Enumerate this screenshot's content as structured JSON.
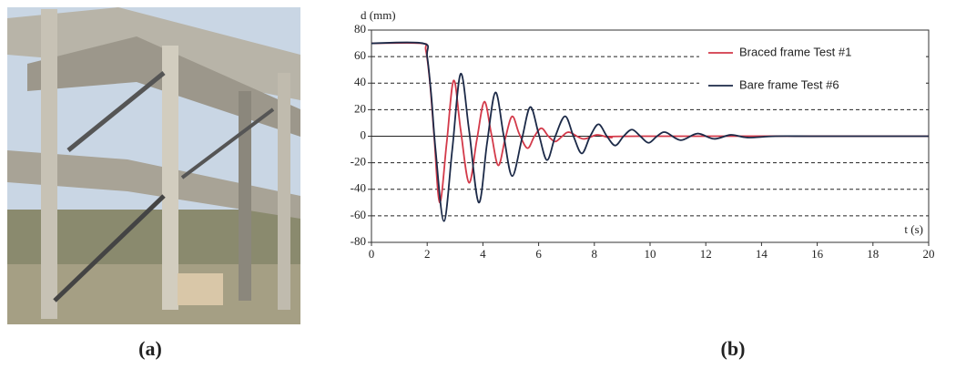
{
  "captions": [
    "(a)",
    "(b)"
  ],
  "chart_data": {
    "type": "line",
    "y_label": "d (mm)",
    "x_label": "t (s)",
    "xlim": [
      0,
      20
    ],
    "xticks": [
      0,
      2,
      4,
      6,
      8,
      10,
      12,
      14,
      16,
      18,
      20
    ],
    "ylim": [
      -80,
      80
    ],
    "yticks": [
      -80,
      -60,
      -40,
      -20,
      0,
      20,
      40,
      60,
      80
    ],
    "grid": true,
    "legend": "upper right",
    "series": [
      {
        "name": "Braced frame Test #1",
        "color": "#d33a4a",
        "x": [
          0,
          1.8,
          1.95,
          2.1,
          2.25,
          2.45,
          2.7,
          2.95,
          3.2,
          3.5,
          3.78,
          4.05,
          4.3,
          4.55,
          4.8,
          5.05,
          5.3,
          5.6,
          5.85,
          6.1,
          6.35,
          6.6,
          6.85,
          7.1,
          7.6,
          8.1,
          8.6,
          9.5,
          20
        ],
        "values": [
          70,
          70,
          65,
          40,
          0,
          -50,
          -5,
          42,
          5,
          -35,
          -3,
          26,
          2,
          -22,
          -2,
          15,
          2,
          -9,
          0,
          6,
          0,
          -4,
          0,
          3,
          -2,
          1,
          -1,
          0,
          0
        ]
      },
      {
        "name": "Bare frame Test #6",
        "color": "#1c2a48",
        "x": [
          0,
          1.85,
          2.0,
          2.15,
          2.3,
          2.6,
          2.9,
          3.2,
          3.5,
          3.85,
          4.15,
          4.45,
          4.75,
          5.05,
          5.4,
          5.7,
          6.0,
          6.3,
          6.6,
          6.95,
          7.25,
          7.55,
          7.85,
          8.15,
          8.45,
          8.75,
          9.05,
          9.35,
          9.65,
          9.95,
          10.25,
          10.55,
          11.1,
          11.7,
          12.3,
          12.9,
          13.5,
          14.5,
          16,
          20
        ],
        "values": [
          70,
          70,
          60,
          30,
          -10,
          -64,
          -10,
          47,
          5,
          -50,
          -5,
          33,
          0,
          -30,
          -2,
          22,
          2,
          -18,
          0,
          15,
          0,
          -13,
          0,
          9,
          0,
          -7,
          0,
          5,
          0,
          -5,
          0,
          3,
          -3,
          2,
          -2,
          1,
          -1,
          0,
          0,
          0
        ]
      }
    ]
  }
}
